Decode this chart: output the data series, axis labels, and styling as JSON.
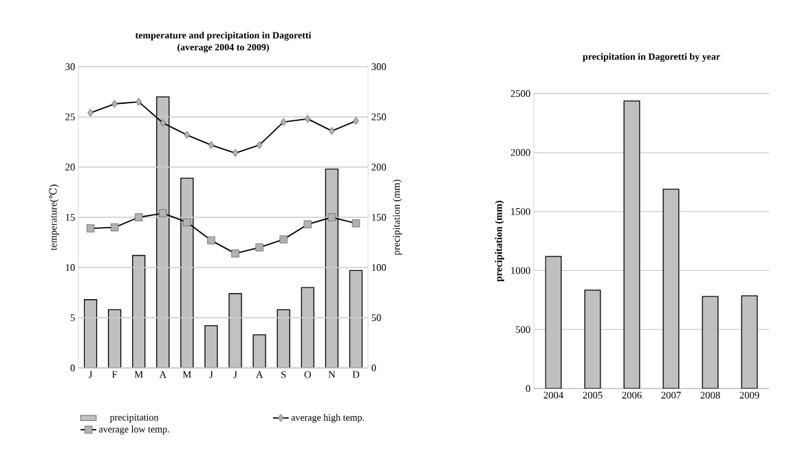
{
  "chart_data": [
    {
      "type": "bar",
      "title": "temperature and precipitation in Dagoretti",
      "subtitle": "(average 2004 to 2009)",
      "ylabel": "temperature(℃)",
      "y2label": "precipitation (mm)",
      "categories": [
        "J",
        "F",
        "M",
        "A",
        "M",
        "J",
        "J",
        "A",
        "S",
        "O",
        "N",
        "D"
      ],
      "series": [
        {
          "name": "precipitation",
          "type": "bar",
          "axis": "y2",
          "color": "#c0c0c0",
          "values": [
            68,
            58,
            112,
            270,
            189,
            42,
            74,
            33,
            58,
            80,
            198,
            97
          ]
        },
        {
          "name": "average high temp.",
          "type": "line",
          "color": "#000000",
          "marker": "diamond",
          "values": [
            25.4,
            26.3,
            26.5,
            24.4,
            23.2,
            22.2,
            21.4,
            22.2,
            24.5,
            24.8,
            23.6,
            24.6
          ]
        },
        {
          "name": "average low temp.",
          "type": "line",
          "color": "#000000",
          "marker": "square",
          "values": [
            13.9,
            14.0,
            15.0,
            15.4,
            14.5,
            12.7,
            11.4,
            12.0,
            12.8,
            14.3,
            15.0,
            14.4
          ]
        }
      ],
      "ylim": [
        0,
        30
      ],
      "yticks": [
        0,
        5,
        10,
        15,
        20,
        25,
        30
      ],
      "y2lim": [
        0,
        300
      ],
      "y2ticks": [
        0,
        50,
        100,
        150,
        200,
        250,
        300
      ],
      "grid": "y",
      "legend": "bottom"
    },
    {
      "type": "bar",
      "title": "precipitation in Dagoretti by year",
      "ylabel": "precipitation (mm)",
      "categories": [
        "2004",
        "2005",
        "2006",
        "2007",
        "2008",
        "2009"
      ],
      "values": [
        1120,
        834,
        2437,
        1689,
        780,
        786
      ],
      "color": "#c0c0c0",
      "ylim": [
        0,
        2500
      ],
      "yticks": [
        0,
        500,
        1000,
        1500,
        2000,
        2500
      ],
      "grid": "y"
    }
  ]
}
